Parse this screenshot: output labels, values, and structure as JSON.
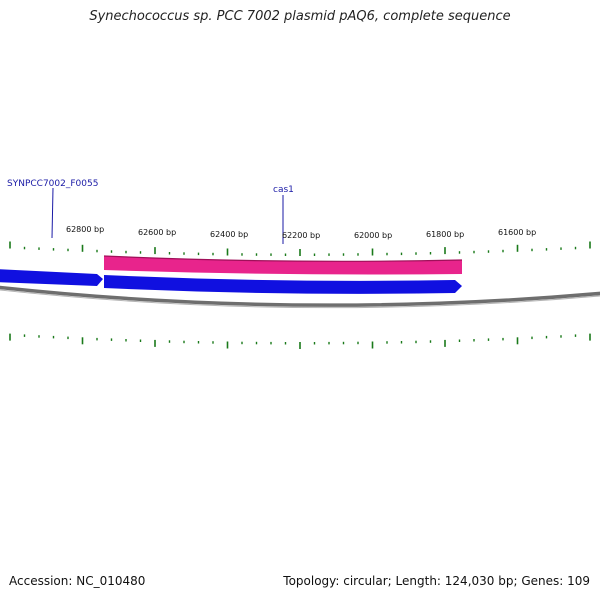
{
  "title": "Synechococcus sp. PCC 7002 plasmid pAQ6, complete sequence",
  "footer": {
    "accession": "Accession: NC_010480",
    "summary": "Topology: circular; Length: 124,030 bp; Genes: 109"
  },
  "map": {
    "scale_labels": [
      "62800 bp",
      "62600 bp",
      "62400 bp",
      "62200 bp",
      "62000 bp",
      "61800 bp",
      "61600 bp"
    ],
    "gene_labels": [
      "SYNPCC7002_F0055",
      "cas1"
    ],
    "colors": {
      "forward_gene": "#1010e0",
      "reverse_gene": "#e8248c",
      "backbone": "#888888",
      "tick": "#1a7a1a",
      "label": "#1a1aa6"
    }
  }
}
